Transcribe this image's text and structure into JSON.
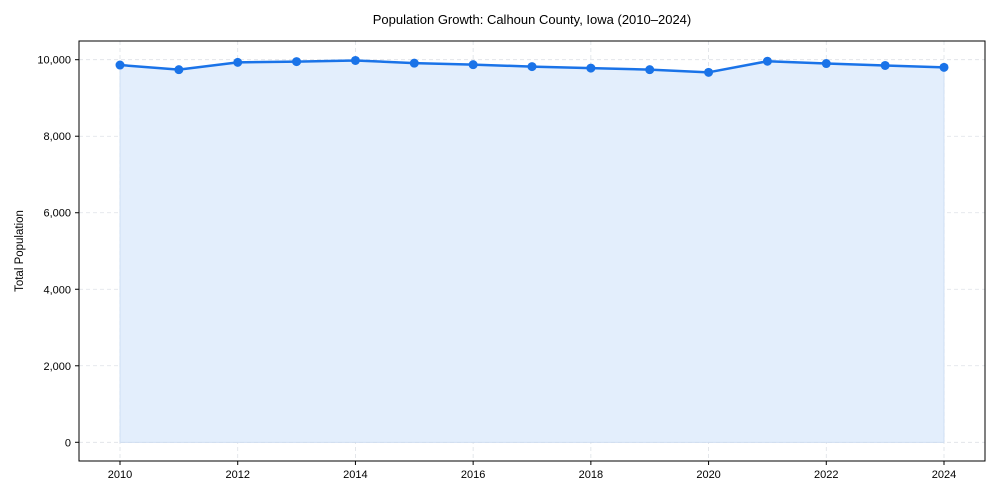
{
  "chart_data": {
    "type": "line",
    "title": "Population Growth: Calhoun County, Iowa (2010–2024)",
    "xlabel": "",
    "ylabel": "Total Population",
    "x": [
      2010,
      2011,
      2012,
      2013,
      2014,
      2015,
      2016,
      2017,
      2018,
      2019,
      2020,
      2021,
      2022,
      2023,
      2024
    ],
    "series": [
      {
        "name": "Total Population",
        "values": [
          9860,
          9740,
          9930,
          9950,
          9980,
          9910,
          9870,
          9820,
          9780,
          9740,
          9670,
          9960,
          9900,
          9850,
          9800
        ],
        "color": "#1a73e8",
        "fill": "#e3eefc"
      }
    ],
    "xticks": [
      "2010",
      "2012",
      "2014",
      "2016",
      "2018",
      "2020",
      "2022",
      "2024"
    ],
    "yticks": [
      "0",
      "2,000",
      "4,000",
      "6,000",
      "8,000",
      "10,000"
    ],
    "ylim": [
      -500,
      10500
    ],
    "xlim": [
      2009.3,
      2024.7
    ],
    "grid": true,
    "legend": "none"
  }
}
